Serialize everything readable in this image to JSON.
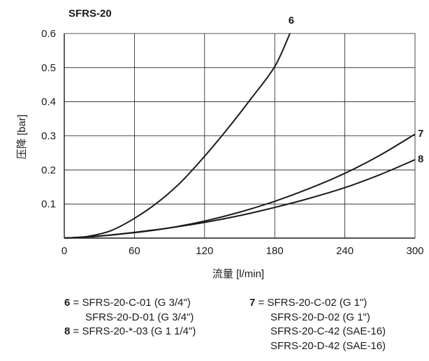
{
  "chart_data": {
    "type": "line",
    "title": "SFRS-20",
    "xlabel": "流量 [l/min]",
    "ylabel": "压降 [bar]",
    "xlim": [
      0,
      300
    ],
    "ylim": [
      0,
      0.6
    ],
    "grid": true,
    "x_ticks": [
      "0",
      "60",
      "120",
      "180",
      "240",
      "300"
    ],
    "y_ticks": [
      "0.1",
      "0.2",
      "0.3",
      "0.4",
      "0.5",
      "0.6"
    ],
    "series": [
      {
        "name": "6",
        "x": [
          0,
          20,
          40,
          60,
          80,
          100,
          120,
          140,
          160,
          180,
          193
        ],
        "y": [
          0,
          0.005,
          0.022,
          0.058,
          0.105,
          0.165,
          0.24,
          0.322,
          0.41,
          0.503,
          0.6
        ]
      },
      {
        "name": "7",
        "x": [
          0,
          30,
          60,
          90,
          120,
          150,
          180,
          210,
          240,
          270,
          300
        ],
        "y": [
          0,
          0.006,
          0.016,
          0.03,
          0.05,
          0.076,
          0.108,
          0.146,
          0.19,
          0.243,
          0.305
        ]
      },
      {
        "name": "8",
        "x": [
          0,
          30,
          60,
          90,
          120,
          150,
          180,
          210,
          240,
          270,
          300
        ],
        "y": [
          0,
          0.006,
          0.017,
          0.03,
          0.046,
          0.066,
          0.09,
          0.117,
          0.148,
          0.186,
          0.23
        ]
      }
    ]
  },
  "legend": {
    "col1": [
      {
        "num": "6",
        "eq": "= ",
        "text": "SFRS-20-C-01 (G 3/4\")"
      },
      {
        "num": "",
        "eq": "",
        "text": "SFRS-20-D-01 (G 3/4\")"
      },
      {
        "num": "8",
        "eq": "= ",
        "text": "SFRS-20-*-03 (G 1 1/4\")"
      }
    ],
    "col2": [
      {
        "num": "7",
        "eq": "= ",
        "text": "SFRS-20-C-02 (G 1\")"
      },
      {
        "num": "",
        "eq": "",
        "text": "SFRS-20-D-02 (G 1\")"
      },
      {
        "num": "",
        "eq": "",
        "text": "SFRS-20-C-42 (SAE-16)"
      },
      {
        "num": "",
        "eq": "",
        "text": "SFRS-20-D-42 (SAE-16)"
      }
    ]
  },
  "colors": {
    "line": "#1a1a1a",
    "grid": "#1a1a1a"
  }
}
